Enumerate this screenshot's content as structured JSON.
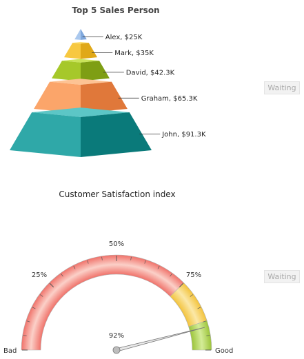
{
  "chart_data": [
    {
      "type": "pyramid",
      "title": "Top 5 Sales Person",
      "unit": "$",
      "series": [
        {
          "label": "Alex, $25K",
          "value": 25,
          "colors": {
            "left": "#aac8ee",
            "right": "#7fa8dd",
            "top": "#d6e6fa"
          }
        },
        {
          "label": "Mark, $35K",
          "value": 35,
          "colors": {
            "left": "#f7c840",
            "right": "#e0a818",
            "top": "#fde27a"
          }
        },
        {
          "label": "David, $42.3K",
          "value": 42.3,
          "colors": {
            "left": "#a6c82a",
            "right": "#7e9e14",
            "top": "#c9e35a"
          }
        },
        {
          "label": "Graham, $65.3K",
          "value": 65.3,
          "colors": {
            "left": "#fba56a",
            "right": "#e0783a",
            "top": "#fdc394"
          }
        },
        {
          "label": "John, $91.3K",
          "value": 91.3,
          "colors": {
            "left": "#2fa8a8",
            "right": "#0a7a7a",
            "top": "#5cc6c6"
          }
        }
      ]
    },
    {
      "type": "gauge",
      "title": "Customer Satisfaction index",
      "min": 0,
      "max": 100,
      "value": 92,
      "value_label": "92%",
      "min_label": "Bad",
      "max_label": "Good",
      "tick_labels": [
        {
          "value": 25,
          "label": "25%"
        },
        {
          "value": 50,
          "label": "50%"
        },
        {
          "value": 75,
          "label": "75%"
        }
      ],
      "bands": [
        {
          "from": 0,
          "to": 75,
          "color": "#f0726a",
          "light": "#fbd0c8"
        },
        {
          "from": 75,
          "to": 90,
          "color": "#f3c33c",
          "light": "#fbe8a8"
        },
        {
          "from": 90,
          "to": 100,
          "color": "#9cc43a",
          "light": "#d4ec98"
        }
      ]
    }
  ],
  "status": {
    "waiting_1": "Waiting",
    "waiting_2": "Waiting"
  }
}
